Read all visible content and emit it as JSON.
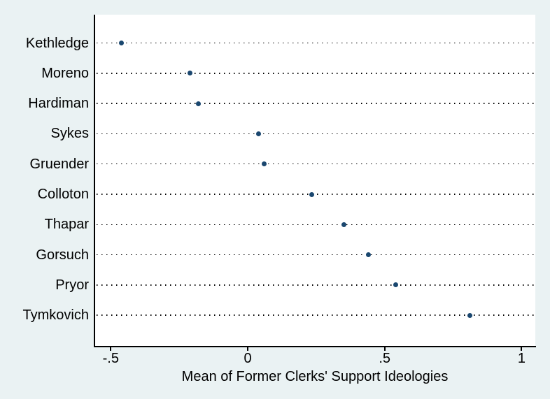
{
  "chart_data": {
    "type": "scatter",
    "subtype": "horizontal-dot-plot",
    "title": "",
    "xlabel": "Mean of Former Clerks' Support Ideologies",
    "ylabel": "",
    "categories": [
      "Kethledge",
      "Moreno",
      "Hardiman",
      "Sykes",
      "Gruender",
      "Colloton",
      "Thapar",
      "Gorsuch",
      "Pryor",
      "Tymkovich"
    ],
    "values": [
      -0.46,
      -0.21,
      -0.18,
      0.04,
      0.06,
      0.235,
      0.35,
      0.44,
      0.54,
      0.81
    ],
    "xlim": [
      -0.557,
      1.05
    ],
    "x_ticks": [
      {
        "value": -0.5,
        "label": "-.5"
      },
      {
        "value": 0,
        "label": "0"
      },
      {
        "value": 0.5,
        "label": ".5"
      },
      {
        "value": 1,
        "label": "1"
      }
    ],
    "grid": "horizontal-dotted",
    "legend": "none",
    "colors": {
      "marker": "#1a476f",
      "background": "#eaf2f3",
      "plot_background": "#ffffff",
      "axis": "#000000",
      "text": "#000000"
    }
  }
}
